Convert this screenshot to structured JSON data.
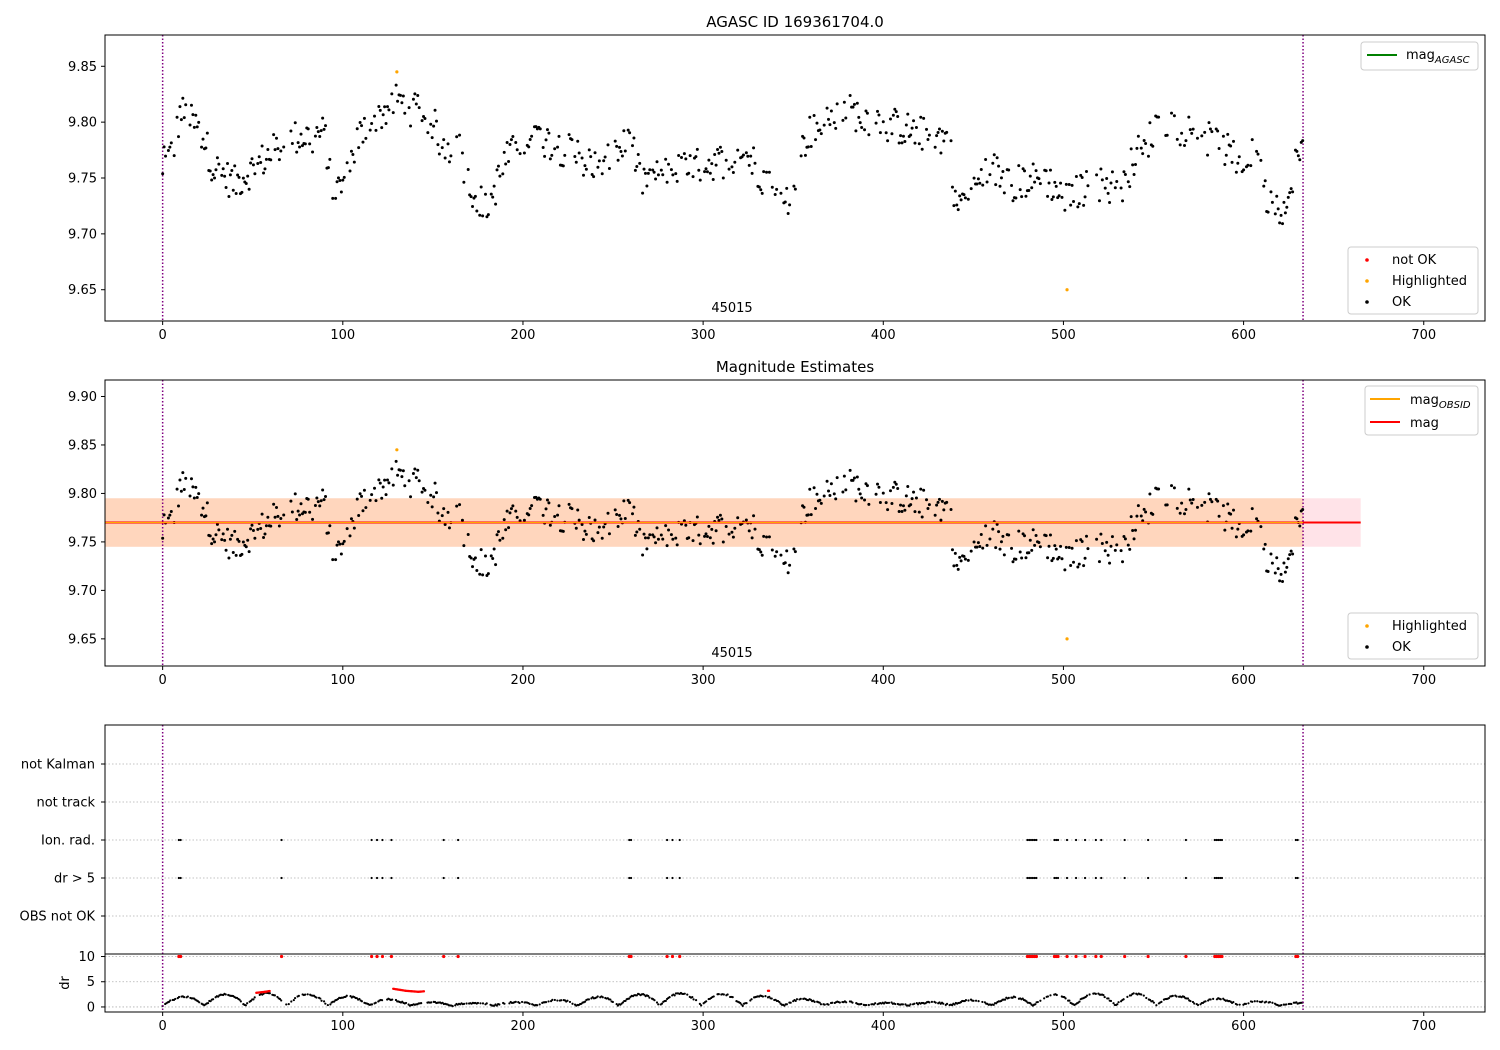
{
  "chart_data": [
    {
      "type": "scatter",
      "title": "AGASC ID 169361704.0",
      "xlim": [
        -32,
        734
      ],
      "ylim": [
        9.622,
        9.878
      ],
      "xticks": [
        0,
        100,
        200,
        300,
        400,
        500,
        600,
        700
      ],
      "yticks": [
        9.65,
        9.7,
        9.75,
        9.8,
        9.85
      ],
      "vlines": [
        0,
        633
      ],
      "annotation": {
        "text": "45015",
        "x": 316
      },
      "legend_upper": [
        {
          "label": "mag",
          "sub": "AGASC",
          "color": "#008000"
        }
      ],
      "legend_lower": [
        {
          "label": "not OK",
          "color": "#ff0000"
        },
        {
          "label": "Highlighted",
          "color": "#ffa500"
        },
        {
          "label": "OK",
          "color": "#000000"
        }
      ],
      "highlighted_points": [
        [
          130,
          9.845
        ],
        [
          502,
          9.65
        ]
      ]
    },
    {
      "type": "scatter",
      "title": "Magnitude Estimates",
      "xlim": [
        -32,
        734
      ],
      "ylim": [
        9.622,
        9.917
      ],
      "xticks": [
        0,
        100,
        200,
        300,
        400,
        500,
        600,
        700
      ],
      "yticks": [
        9.65,
        9.7,
        9.75,
        9.8,
        9.85,
        9.9
      ],
      "vlines": [
        0,
        633
      ],
      "annotation": {
        "text": "45015",
        "x": 316
      },
      "mag_line": 9.77,
      "obsid_band": [
        9.745,
        9.795
      ],
      "mag_band": [
        9.745,
        9.795
      ],
      "legend_upper": [
        {
          "label": "mag",
          "sub": "OBSID",
          "color": "#ffa500"
        },
        {
          "label": "mag",
          "sub": "",
          "color": "#ff0000"
        }
      ],
      "legend_lower": [
        {
          "label": "Highlighted",
          "color": "#ffa500"
        },
        {
          "label": "OK",
          "color": "#000000"
        }
      ],
      "highlighted_points": [
        [
          130,
          9.845
        ],
        [
          502,
          9.65
        ]
      ]
    },
    {
      "type": "scatter",
      "title": "",
      "xlim": [
        -32,
        734
      ],
      "xticks": [
        0,
        100,
        200,
        300,
        400,
        500,
        600,
        700
      ],
      "vlines": [
        0,
        633
      ],
      "flag_rows": [
        "not Kalman",
        "not track",
        "Ion. rad.",
        "dr > 5",
        "OBS not OK"
      ],
      "flag_x": [
        9,
        10,
        66,
        116,
        119,
        122,
        127,
        156,
        164,
        259,
        260,
        280,
        283,
        287,
        480,
        481,
        482,
        483,
        484,
        485,
        495,
        496,
        497,
        502,
        507,
        512,
        518,
        521,
        534,
        547,
        568,
        584,
        585,
        586,
        587,
        588,
        629,
        630
      ],
      "dr_ylabel": "dr",
      "dr_yticks": [
        0,
        5,
        10
      ],
      "dr_ylim": [
        -1,
        10.5
      ],
      "dr_red_points_at_10": [
        9,
        10,
        66,
        116,
        119,
        122,
        127,
        156,
        164,
        259,
        260,
        280,
        283,
        287,
        480,
        481,
        482,
        483,
        484,
        485,
        495,
        496,
        497,
        502,
        507,
        512,
        518,
        521,
        534,
        547,
        568,
        584,
        585,
        586,
        587,
        588,
        629,
        630
      ],
      "dr_red_segments": [
        [
          [
            52,
            2.8
          ],
          [
            57,
            3.0
          ],
          [
            60,
            3.2
          ]
        ],
        [
          [
            128,
            3.6
          ],
          [
            135,
            3.2
          ],
          [
            142,
            3.0
          ],
          [
            145,
            3.1
          ]
        ],
        [
          [
            336,
            3.2
          ],
          [
            337,
            3.2
          ]
        ]
      ]
    }
  ],
  "colors": {
    "ok": "#000000",
    "not_ok": "#ff0000",
    "highlighted": "#ffa500",
    "agasc": "#008000",
    "obsid": "#ffa500",
    "mag": "#ff0000",
    "vline": "#800080",
    "band_mag": "#ffc0cb",
    "band_obsid": "#ffcc99"
  }
}
